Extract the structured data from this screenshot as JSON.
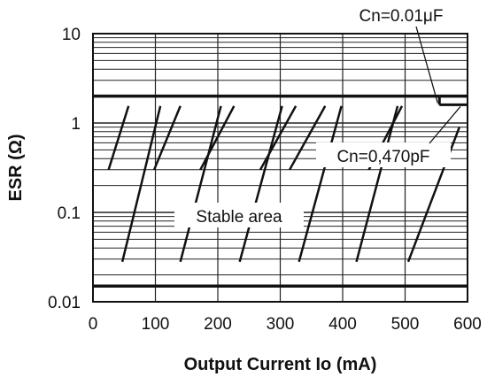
{
  "chart_data": {
    "type": "line",
    "xlabel": "Output Current Io (mA)",
    "ylabel": "ESR (Ω)",
    "xlim": [
      0,
      600
    ],
    "ylim": [
      0.01,
      10
    ],
    "y_scale": "log",
    "grid": true,
    "x_ticks": [
      "0",
      "100",
      "200",
      "300",
      "400",
      "500",
      "600"
    ],
    "x_tick_values": [
      0,
      100,
      200,
      300,
      400,
      500,
      600
    ],
    "y_ticks": [
      "0.01",
      "0.1",
      "1",
      "10"
    ],
    "y_tick_values": [
      0.01,
      0.1,
      1,
      10
    ],
    "boundaries": {
      "upper_esr": 2.0,
      "lower_esr": 0.015,
      "upper_step": {
        "x": [
          555,
          600
        ],
        "esr": 1.6
      }
    },
    "hatch_lines": [
      {
        "x": [
          25,
          57
        ],
        "y": [
          0.3,
          1.55
        ]
      },
      {
        "x": [
          47,
          108
        ],
        "y": [
          0.028,
          1.55
        ]
      },
      {
        "x": [
          140,
          205
        ],
        "y": [
          0.028,
          1.55
        ]
      },
      {
        "x": [
          235,
          303
        ],
        "y": [
          0.028,
          1.55
        ]
      },
      {
        "x": [
          330,
          398
        ],
        "y": [
          0.028,
          1.55
        ]
      },
      {
        "x": [
          422,
          488
        ],
        "y": [
          0.028,
          1.55
        ]
      },
      {
        "x": [
          505,
          587
        ],
        "y": [
          0.028,
          0.9
        ]
      },
      {
        "x": [
          172,
          226
        ],
        "y": [
          0.3,
          1.55
        ]
      },
      {
        "x": [
          315,
          372
        ],
        "y": [
          0.3,
          1.55
        ]
      },
      {
        "x": [
          442,
          495
        ],
        "y": [
          0.3,
          1.55
        ]
      },
      {
        "x": [
          268,
          325
        ],
        "y": [
          0.3,
          1.55
        ]
      },
      {
        "x": [
          98,
          140
        ],
        "y": [
          0.3,
          1.55
        ]
      }
    ],
    "annotations": [
      {
        "text": "Cn=0.01μF",
        "x": 570,
        "y": 20,
        "target": [
          555,
          1.6
        ]
      },
      {
        "text": "Cn=0,470pF",
        "x": 520,
        "y": 0.55,
        "target": [
          600,
          1.6
        ]
      },
      {
        "text": "Stable area",
        "x": 245,
        "y": 0.1
      }
    ]
  }
}
